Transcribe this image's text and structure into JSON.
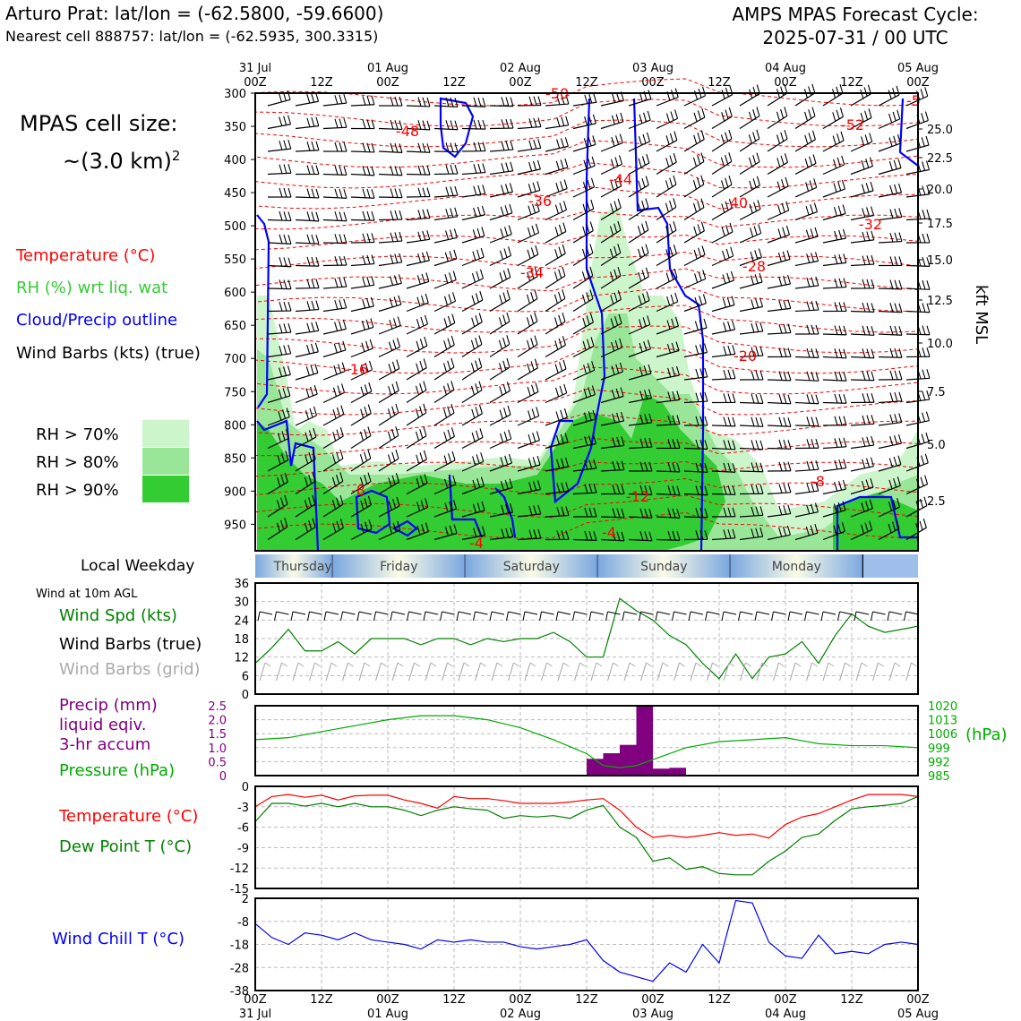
{
  "header": {
    "station_title": "Arturo Prat: lat/lon = (-62.5800, -59.6600)",
    "nearest_cell": "Nearest cell 888757: lat/lon = (-62.5935, 300.3315)",
    "forecast_title": "AMPS MPAS Forecast Cycle:",
    "forecast_cycle": "2025-07-31 / 00 UTC"
  },
  "cell_size": {
    "line1": "MPAS cell size:",
    "line2": "~(3.0 km)",
    "sup": "2"
  },
  "legend": {
    "temperature": "Temperature (°C)",
    "rh": "RH (%) wrt liq. wat",
    "cloud": "Cloud/Precip outline",
    "wind_barbs": "Wind Barbs (kts) (true)",
    "rh70": "RH > 70%",
    "rh80": "RH > 80%",
    "rh90": "RH > 90%"
  },
  "colors": {
    "temperature": "#ff0000",
    "rh_text": "#33cc33",
    "cloud": "#0000ff",
    "rh70": "#ccf5cc",
    "rh80": "#99e699",
    "rh90": "#33cc33",
    "precip": "#800080",
    "pressure": "#00aa00",
    "dewpoint": "#007f00",
    "windchill": "#0000ff",
    "windspd": "#008000",
    "grid_barb": "#aaaaaa"
  },
  "time_axis": {
    "top_dates": [
      "31 Jul",
      "",
      "01 Aug",
      "",
      "02 Aug",
      "",
      "03 Aug",
      "",
      "04 Aug",
      "",
      "05 Aug"
    ],
    "hours": [
      "00Z",
      "12Z",
      "00Z",
      "12Z",
      "00Z",
      "12Z",
      "00Z",
      "12Z",
      "00Z",
      "12Z",
      "00Z"
    ],
    "bottom_dates": [
      "31 Jul",
      "",
      "01 Aug",
      "",
      "02 Aug",
      "",
      "03 Aug",
      "",
      "04 Aug",
      "",
      "05 Aug"
    ]
  },
  "weekday": {
    "label": "Local Weekday",
    "days": [
      "Thursday",
      "Friday",
      "Saturday",
      "Sunday",
      "Monday"
    ]
  },
  "chart_data": [
    {
      "type": "heatmap",
      "name": "cross-section",
      "y_pressure_ticks": [
        300,
        350,
        400,
        450,
        500,
        550,
        600,
        650,
        700,
        750,
        800,
        850,
        900,
        950
      ],
      "y_kft_ticks": [
        "25.0",
        "22.5",
        "20.0",
        "17.5",
        "15.0",
        "12.5",
        "10.0",
        "7.5",
        "5.0",
        "2.5"
      ],
      "y_kft_label": "kft MSL",
      "temperature_labels": [
        "-48",
        "-50",
        "-36",
        "-44",
        "-40",
        "-32",
        "-52",
        "-5",
        "-34",
        "-28",
        "-16",
        "-20",
        "-8",
        "-12",
        "-8",
        "-4",
        "-4"
      ]
    },
    {
      "type": "line",
      "name": "wind",
      "title": "Wind at 10m AGL",
      "series_labels": [
        "Wind Spd (kts)",
        "Wind Barbs (true)",
        "Wind Barbs (grid)"
      ],
      "y_ticks": [
        0,
        6,
        12,
        18,
        24,
        30,
        36
      ],
      "ylim": [
        0,
        36
      ],
      "x_hours": [
        0,
        6,
        12,
        18,
        24,
        30,
        36,
        42,
        48,
        54,
        60,
        66,
        72,
        78,
        84,
        90,
        96,
        102,
        108,
        114,
        120
      ],
      "wind_speed": [
        10,
        15,
        21,
        14,
        14,
        17,
        13,
        18,
        18,
        18,
        16,
        18,
        18,
        16,
        18,
        17,
        18,
        18,
        20,
        17,
        12,
        12,
        31,
        27,
        24,
        19,
        16,
        10,
        5,
        13,
        5,
        12,
        13,
        17,
        10,
        19,
        26,
        22,
        20,
        22
      ],
      "wind_speed_x": [
        0,
        3,
        6,
        9,
        12,
        15,
        18,
        21,
        24,
        27,
        30,
        33,
        36,
        39,
        42,
        45,
        48,
        51,
        54,
        57,
        60,
        63,
        66,
        69,
        72,
        75,
        78,
        81,
        84,
        87,
        90,
        93,
        96,
        99,
        102,
        105,
        108,
        111,
        114,
        120
      ]
    },
    {
      "type": "bar",
      "name": "precip-pressure",
      "series_labels": [
        "Precip (mm)",
        "liquid eqiv.",
        "3-hr accum",
        "Pressure (hPa)"
      ],
      "precip_ticks": [
        "0",
        "0.5",
        "1.0",
        "1.5",
        "2.0",
        "2.5"
      ],
      "precip_ylim": [
        0,
        2.5
      ],
      "pressure_ticks": [
        "985",
        "992",
        "999",
        "1006",
        "1013",
        "1020"
      ],
      "pressure_unit": "(hPa)",
      "pressure_ylim": [
        985,
        1020
      ],
      "precip_x": [
        60,
        63,
        66,
        69,
        72,
        75
      ],
      "precip_values": [
        0.6,
        0.8,
        1.1,
        2.5,
        0.25,
        0.28
      ],
      "pressure_x": [
        0,
        6,
        12,
        18,
        24,
        30,
        36,
        42,
        48,
        54,
        60,
        63,
        66,
        69,
        72,
        78,
        84,
        90,
        96,
        102,
        108,
        114,
        120
      ],
      "pressure_values": [
        1003,
        1004,
        1007,
        1010,
        1013,
        1015,
        1015,
        1013,
        1009,
        1003,
        996,
        990,
        989,
        990,
        993,
        999,
        1002,
        1003,
        1004,
        1001,
        1000,
        1000,
        999
      ]
    },
    {
      "type": "line",
      "name": "temperature-dewpoint",
      "series_labels": [
        "Temperature (°C)",
        "Dew Point T (°C)"
      ],
      "y_ticks": [
        "0",
        "-3",
        "-6",
        "-9",
        "-12",
        "-15"
      ],
      "ylim": [
        -15,
        0
      ],
      "x_hours": [
        0,
        3,
        6,
        9,
        12,
        15,
        18,
        21,
        24,
        27,
        30,
        33,
        36,
        39,
        42,
        45,
        48,
        51,
        54,
        57,
        60,
        63,
        66,
        69,
        72,
        75,
        78,
        81,
        84,
        87,
        90,
        93,
        96,
        99,
        102,
        105,
        108,
        111,
        114,
        117,
        120
      ],
      "temperature": [
        -3,
        -1.5,
        -1.2,
        -1.6,
        -1.3,
        -2.0,
        -1.4,
        -1.3,
        -1.3,
        -2.0,
        -2.5,
        -3.2,
        -1.5,
        -1.8,
        -1.8,
        -2.1,
        -2.5,
        -2.5,
        -2.5,
        -2.3,
        -2.0,
        -1.8,
        -3.5,
        -6.0,
        -7.5,
        -7.2,
        -7.5,
        -7.2,
        -6.8,
        -7.2,
        -7.0,
        -7.6,
        -5.6,
        -4.5,
        -4.0,
        -3.0,
        -2.0,
        -1.2,
        -1.2,
        -1.2,
        -1.5
      ],
      "dewpoint": [
        -5.2,
        -2.5,
        -2.5,
        -2.9,
        -2.5,
        -3.0,
        -2.5,
        -3.0,
        -3.0,
        -3.5,
        -4.3,
        -3.5,
        -3.0,
        -3.3,
        -3.5,
        -4.7,
        -4.3,
        -4.5,
        -4.3,
        -4.7,
        -3.5,
        -2.8,
        -6.0,
        -7.5,
        -11.0,
        -10.5,
        -12.2,
        -11.8,
        -12.8,
        -13.0,
        -13.0,
        -11.0,
        -9.5,
        -7.5,
        -7.0,
        -5.0,
        -3.3,
        -3.0,
        -2.8,
        -2.5,
        -1.5
      ]
    },
    {
      "type": "line",
      "name": "wind-chill",
      "series_labels": [
        "Wind Chill T (°C)"
      ],
      "y_ticks": [
        "2",
        "-8",
        "-18",
        "-28",
        "-38"
      ],
      "ylim": [
        -38,
        2
      ],
      "x_hours": [
        0,
        3,
        6,
        9,
        12,
        15,
        18,
        21,
        24,
        27,
        30,
        33,
        36,
        39,
        42,
        45,
        48,
        51,
        54,
        57,
        60,
        63,
        66,
        69,
        72,
        75,
        78,
        81,
        84,
        87,
        90,
        93,
        96,
        99,
        102,
        105,
        108,
        111,
        114,
        117,
        120
      ],
      "wind_chill": [
        -9,
        -15,
        -18,
        -13,
        -14,
        -16,
        -13,
        -16,
        -17,
        -18,
        -20,
        -16,
        -17,
        -16,
        -17,
        -17,
        -19,
        -20,
        -19,
        -18,
        -16,
        -25,
        -30,
        -32,
        -34,
        -26,
        -30,
        -18,
        -26,
        1,
        0,
        -17,
        -23,
        -24,
        -14,
        -22,
        -21,
        -22,
        -18,
        -17,
        -18
      ]
    }
  ]
}
